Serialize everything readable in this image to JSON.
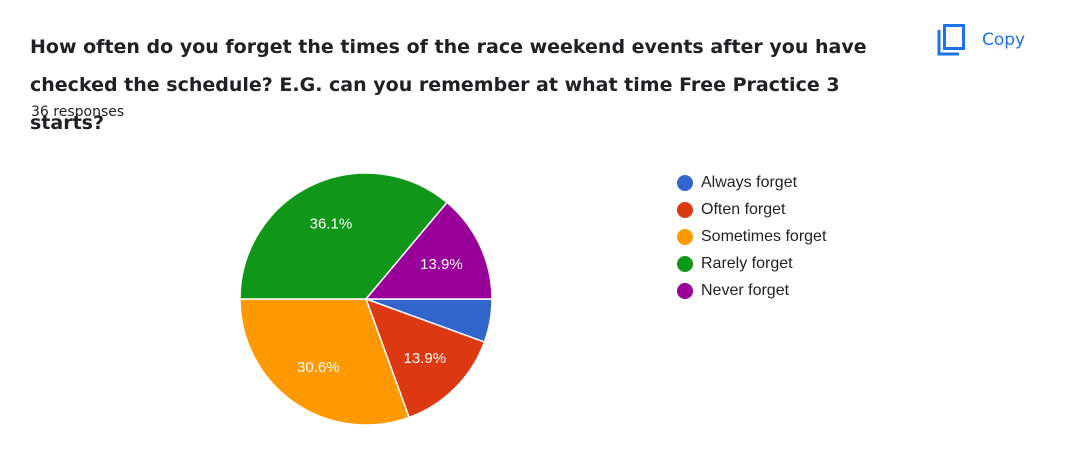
{
  "question": {
    "title": "How often do you forget the times of the race weekend events after you have checked the schedule? E.G. can you remember at what time Free Practice 3 starts?",
    "responses": "36 responses"
  },
  "toolbar": {
    "copy_label": "Copy",
    "copy_icon": "copy-icon",
    "accent_color": "#1a73e8"
  },
  "chart_data": {
    "type": "pie",
    "total": 36,
    "slices": [
      {
        "name": "Always forget",
        "count": 2,
        "percent": 5.6,
        "label": "",
        "color": "#3366cc"
      },
      {
        "name": "Often forget",
        "count": 5,
        "percent": 13.9,
        "label": "13.9%",
        "color": "#dc3912"
      },
      {
        "name": "Sometimes forget",
        "count": 11,
        "percent": 30.6,
        "label": "30.6%",
        "color": "#ff9900"
      },
      {
        "name": "Rarely forget",
        "count": 13,
        "percent": 36.1,
        "label": "36.1%",
        "color": "#109618"
      },
      {
        "name": "Never forget",
        "count": 5,
        "percent": 13.9,
        "label": "13.9%",
        "color": "#990099"
      }
    ],
    "legend_position": "right"
  }
}
